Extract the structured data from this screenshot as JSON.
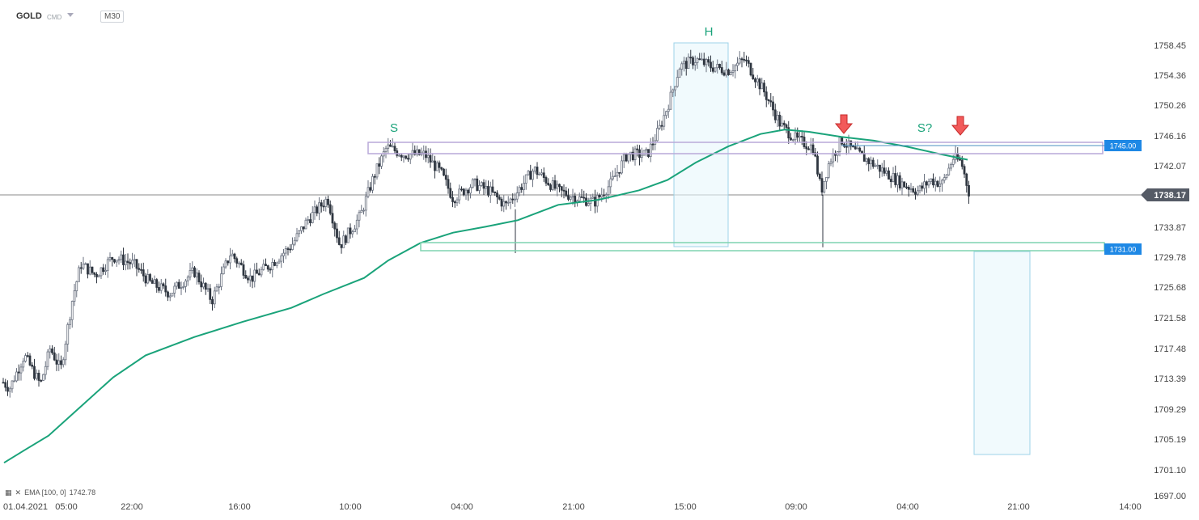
{
  "header": {
    "symbol": "GOLD",
    "market": "CMD",
    "timeframe": "M30"
  },
  "legend": {
    "indicator": "EMA [100, 0]",
    "value": "1742.78"
  },
  "colors": {
    "ema": "#1aa37a",
    "resistance": "#b9a9d9",
    "support": "#7fd3b0",
    "zone": "#9dd3e8",
    "arrow": "#e23a3a",
    "label_blue": "#1e88e5",
    "price_tag": "#555b66"
  },
  "chart_data": {
    "type": "candlestick",
    "instrument": "GOLD",
    "timeframe": "M30",
    "y_ticks": [
      "1758.45",
      "1754.36",
      "1750.26",
      "1746.16",
      "1742.07",
      "1738.17",
      "1733.87",
      "1729.78",
      "1725.68",
      "1721.58",
      "1717.48",
      "1713.39",
      "1709.29",
      "1705.19",
      "1701.10",
      "1697.00"
    ],
    "ylim": [
      1697.0,
      1760.0
    ],
    "x_ticks": [
      "01.04.2021",
      "05:00",
      "22:00",
      "16:00",
      "10:00",
      "04:00",
      "21:00",
      "15:00",
      "09:00",
      "04:00",
      "21:00",
      "14:00"
    ],
    "current_price": "1738.17",
    "levels": [
      {
        "label": "1745.00",
        "value": 1745.0
      },
      {
        "label": "1731.00",
        "value": 1731.0
      }
    ],
    "annotations": [
      {
        "text": "S"
      },
      {
        "text": "H"
      },
      {
        "text": "S?"
      }
    ],
    "ema_series": {
      "name": "EMA [100, 0]",
      "last": 1742.78
    },
    "price_anchors": [
      [
        0,
        1712.7
      ],
      [
        12,
        1711.5
      ],
      [
        30,
        1716
      ],
      [
        50,
        1712
      ],
      [
        62,
        1717
      ],
      [
        75,
        1714
      ],
      [
        90,
        1724
      ],
      [
        100,
        1728.5
      ],
      [
        118,
        1727
      ],
      [
        140,
        1729.5
      ],
      [
        165,
        1728.5
      ],
      [
        185,
        1726
      ],
      [
        210,
        1724.5
      ],
      [
        240,
        1727.5
      ],
      [
        262,
        1723.5
      ],
      [
        285,
        1730
      ],
      [
        310,
        1726.5
      ],
      [
        335,
        1728.5
      ],
      [
        360,
        1731
      ],
      [
        380,
        1734.5
      ],
      [
        405,
        1737.5
      ],
      [
        420,
        1731
      ],
      [
        445,
        1735
      ],
      [
        462,
        1740.5
      ],
      [
        478,
        1744.5
      ],
      [
        500,
        1743.5
      ],
      [
        525,
        1743.5
      ],
      [
        545,
        1741
      ],
      [
        560,
        1737.5
      ],
      [
        585,
        1739.5
      ],
      [
        605,
        1738.5
      ],
      [
        625,
        1736.5
      ],
      [
        640,
        1738.5
      ],
      [
        660,
        1741.5
      ],
      [
        690,
        1738.5
      ],
      [
        715,
        1737.5
      ],
      [
        735,
        1737
      ],
      [
        755,
        1739.5
      ],
      [
        775,
        1743.5
      ],
      [
        800,
        1743.5
      ],
      [
        815,
        1747
      ],
      [
        828,
        1751
      ],
      [
        840,
        1755.5
      ],
      [
        860,
        1756.5
      ],
      [
        880,
        1755.5
      ],
      [
        900,
        1755
      ],
      [
        920,
        1756.5
      ],
      [
        945,
        1752
      ],
      [
        965,
        1747.5
      ],
      [
        985,
        1745.5
      ],
      [
        1005,
        1744.5
      ],
      [
        1015,
        1738.5
      ],
      [
        1025,
        1742.5
      ],
      [
        1040,
        1745.5
      ],
      [
        1055,
        1744
      ],
      [
        1075,
        1742.5
      ],
      [
        1095,
        1741
      ],
      [
        1115,
        1739.5
      ],
      [
        1135,
        1738.5
      ],
      [
        1150,
        1740
      ],
      [
        1165,
        1739.5
      ],
      [
        1178,
        1743
      ],
      [
        1188,
        1742.5
      ],
      [
        1198,
        1738.2
      ]
    ]
  }
}
